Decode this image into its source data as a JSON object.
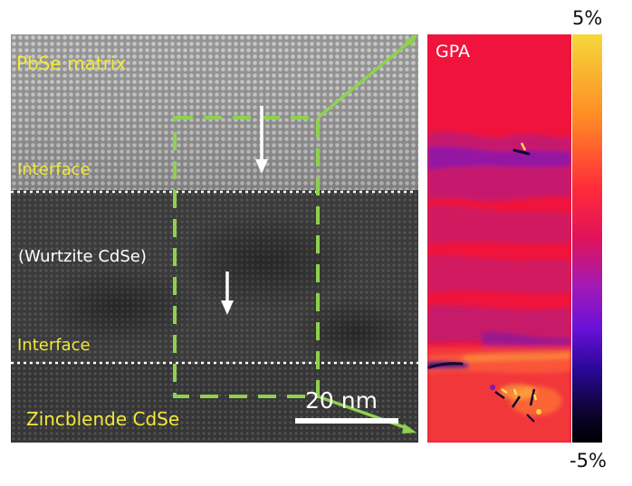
{
  "labels": {
    "pbse_matrix": "PbSe matrix",
    "interface_top": "Interface",
    "wurtzite": "(Wurtzite CdSe)",
    "interface_bottom": "Interface",
    "zincblende": "Zincblende CdSe",
    "scale_bar": "20 nm",
    "gpa_title": "GPA"
  },
  "colorbar": {
    "max_label": "5%",
    "min_label": "-5%"
  },
  "colors": {
    "label_yellow": "#f2e93b",
    "box_green": "#8fd14f",
    "gpa_base": "#f0143c"
  }
}
